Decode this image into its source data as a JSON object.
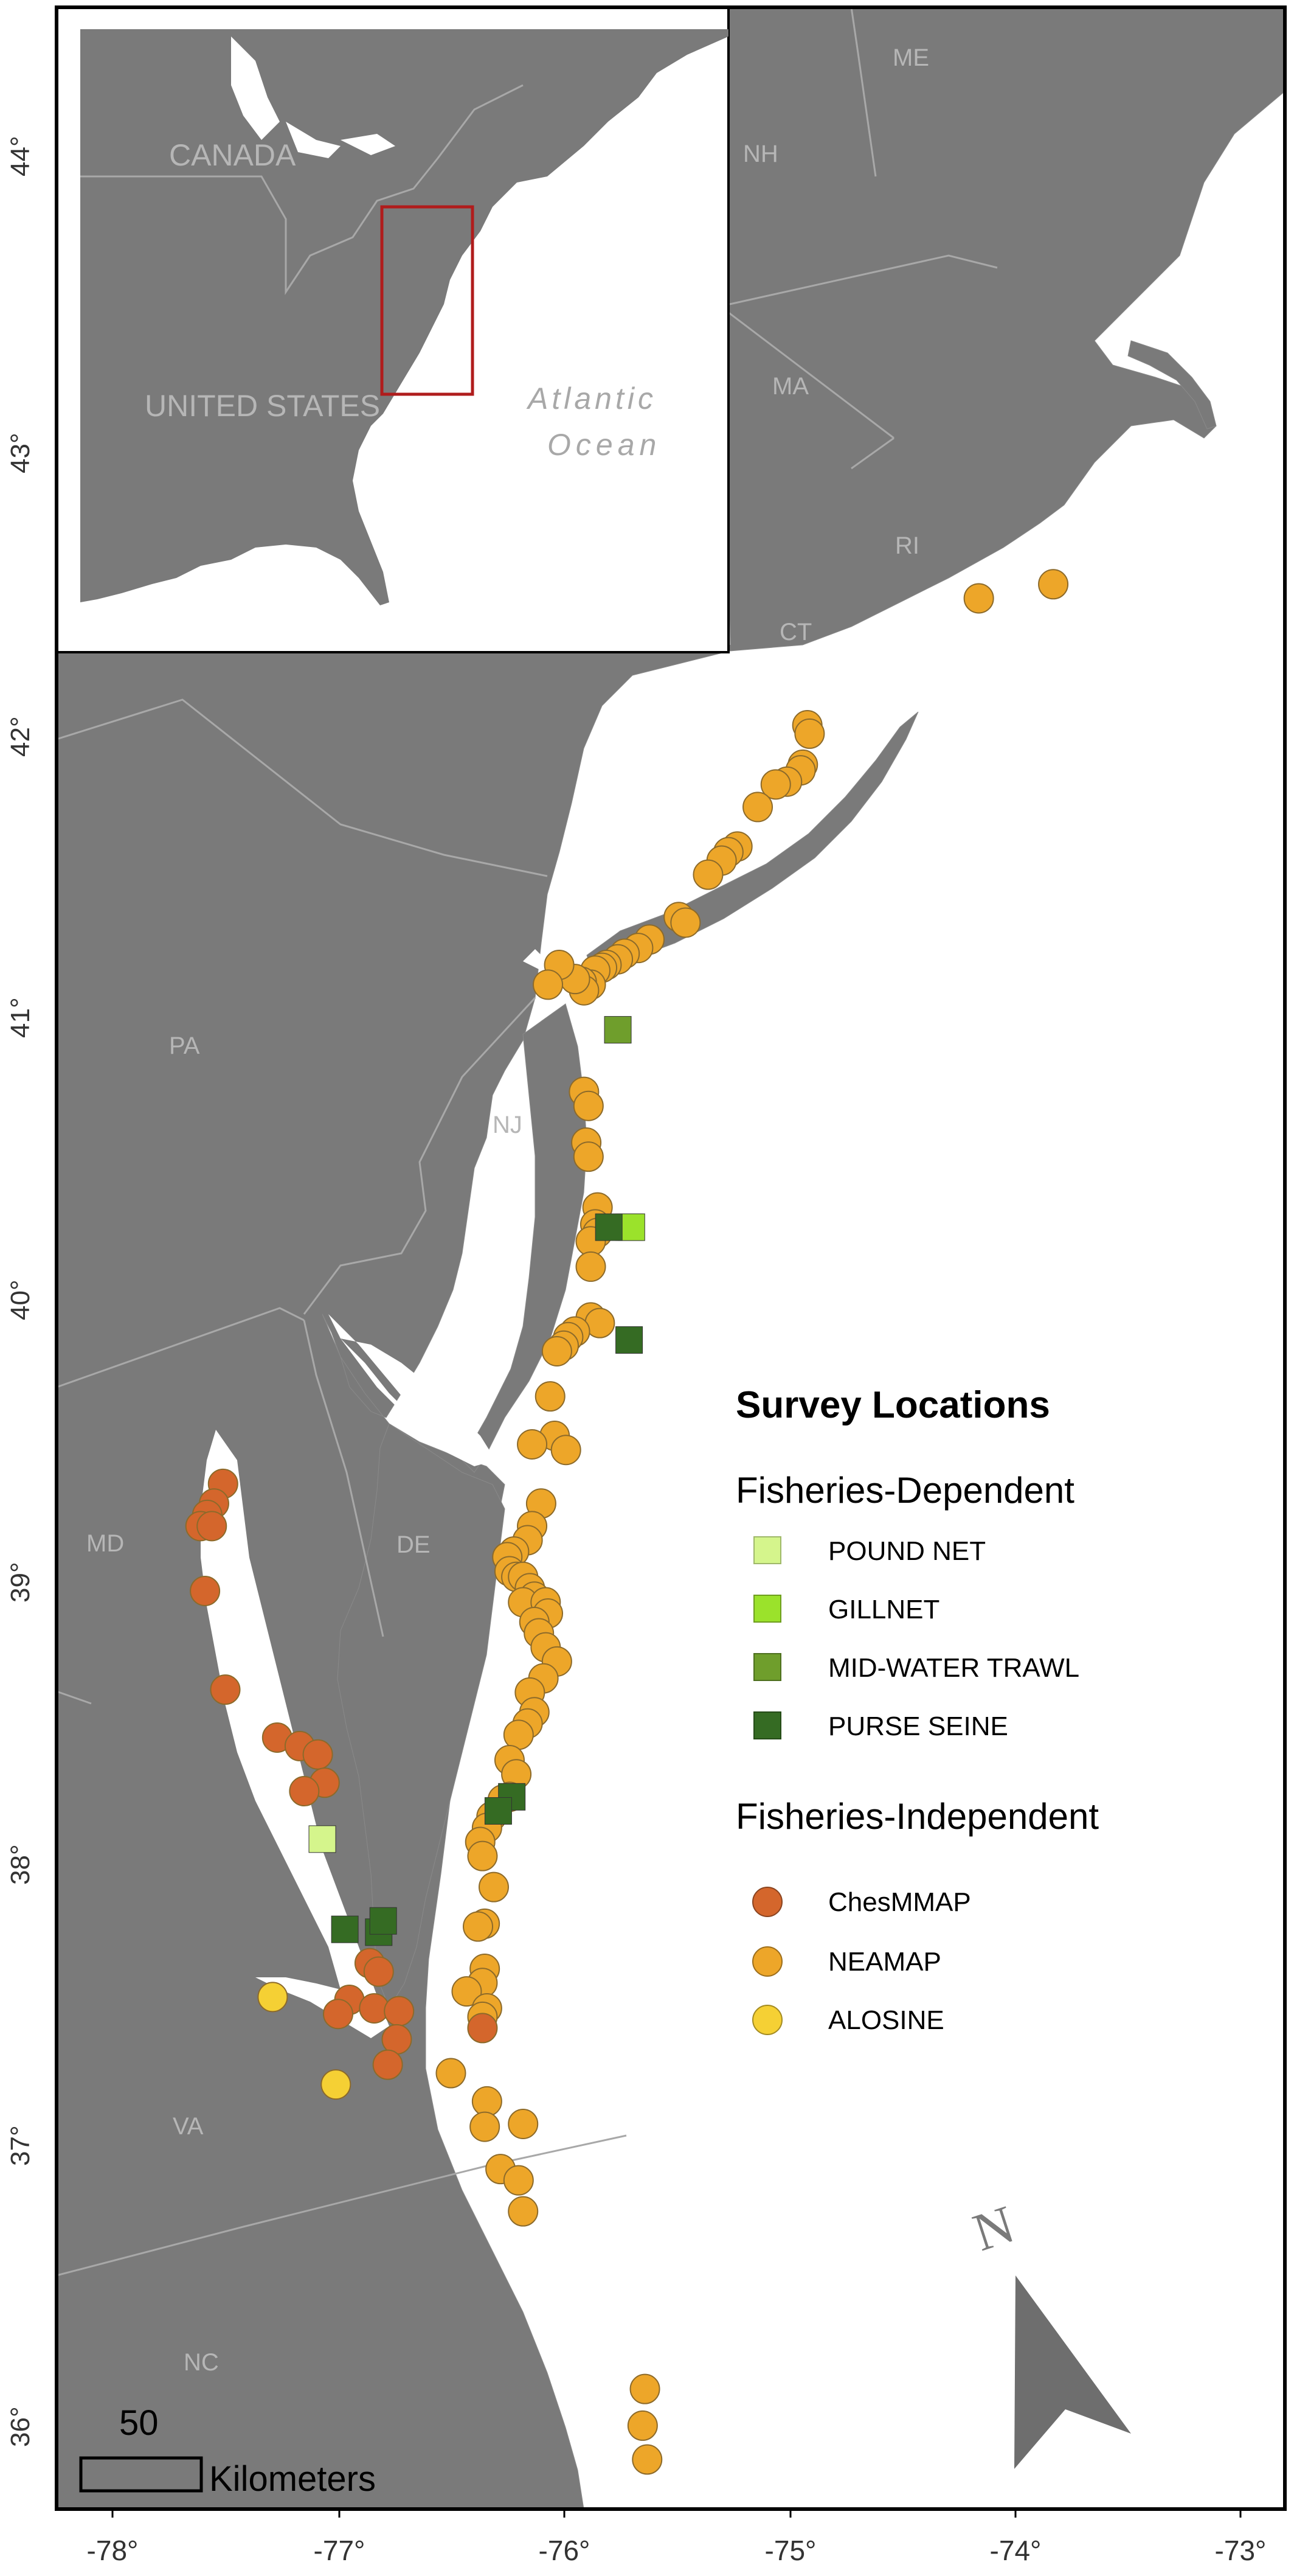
{
  "map": {
    "states": [
      {
        "label": "ME"
      },
      {
        "label": "NH"
      },
      {
        "label": "MA"
      },
      {
        "label": "RI"
      },
      {
        "label": "CT"
      },
      {
        "label": "PA"
      },
      {
        "label": "NJ"
      },
      {
        "label": "MD"
      },
      {
        "label": "DE"
      },
      {
        "label": "VA"
      },
      {
        "label": "NC"
      }
    ],
    "lat_ticks": [
      "44°",
      "43°",
      "42°",
      "41°",
      "40°",
      "39°",
      "38°",
      "37°",
      "36°"
    ],
    "lon_ticks": [
      "-78°",
      "-77°",
      "-76°",
      "-75°",
      "-74°",
      "-73°"
    ],
    "colors": {
      "land": "#7a7a7a",
      "water": "#ffffff",
      "state_border": "#a8a8a8",
      "frame": "#000000",
      "inset_box": "#b01c1c"
    }
  },
  "inset": {
    "country_labels": [
      "CANADA",
      "UNITED STATES"
    ],
    "ocean_label_line1": "Atlantic",
    "ocean_label_line2": "Ocean"
  },
  "legend": {
    "title": "Survey Locations",
    "dependent_heading": "Fisheries-Dependent",
    "independent_heading": "Fisheries-Independent",
    "dependent": [
      {
        "label": "POUND NET",
        "color": "#d5f58c"
      },
      {
        "label": "GILLNET",
        "color": "#9be22b"
      },
      {
        "label": "MID-WATER TRAWL",
        "color": "#6f9e2c"
      },
      {
        "label": "PURSE SEINE",
        "color": "#356b23"
      }
    ],
    "independent": [
      {
        "label": "ChesMMAP",
        "color": "#d4662c"
      },
      {
        "label": "NEAMAP",
        "color": "#eda629"
      },
      {
        "label": "ALOSINE",
        "color": "#f5d034"
      }
    ]
  },
  "scale": {
    "value": "50",
    "unit": "Kilometers"
  },
  "north": {
    "label": "N"
  },
  "surveys": {
    "pound_net": [
      [
        -77.07,
        38.16
      ],
      [
        -75.71,
        40.33
      ]
    ],
    "gillnet": [
      [
        -75.7,
        40.33
      ]
    ],
    "midwater": [
      [
        -75.76,
        41.03
      ]
    ],
    "purse_seine": [
      [
        -76.23,
        38.31
      ],
      [
        -76.29,
        38.26
      ],
      [
        -76.97,
        37.84
      ],
      [
        -76.82,
        37.83
      ],
      [
        -76.8,
        37.87
      ],
      [
        -75.71,
        39.93
      ],
      [
        -75.8,
        40.33
      ]
    ],
    "chesmmap": [
      [
        -77.51,
        39.42
      ],
      [
        -77.55,
        39.35
      ],
      [
        -77.58,
        39.31
      ],
      [
        -77.61,
        39.27
      ],
      [
        -77.56,
        39.27
      ],
      [
        -77.59,
        39.04
      ],
      [
        -77.5,
        38.69
      ],
      [
        -77.27,
        38.52
      ],
      [
        -77.17,
        38.49
      ],
      [
        -77.09,
        38.46
      ],
      [
        -77.06,
        38.36
      ],
      [
        -77.15,
        38.33
      ],
      [
        -76.86,
        37.72
      ],
      [
        -76.82,
        37.69
      ],
      [
        -76.95,
        37.59
      ],
      [
        -77.0,
        37.54
      ],
      [
        -76.84,
        37.56
      ],
      [
        -76.73,
        37.55
      ],
      [
        -76.74,
        37.45
      ],
      [
        -76.78,
        37.36
      ],
      [
        -76.36,
        37.49
      ]
    ],
    "neamap": [
      [
        -74.16,
        42.56
      ],
      [
        -73.83,
        42.61
      ],
      [
        -74.92,
        42.11
      ],
      [
        -74.91,
        42.08
      ],
      [
        -74.94,
        41.97
      ],
      [
        -74.95,
        41.95
      ],
      [
        -75.01,
        41.91
      ],
      [
        -75.06,
        41.9
      ],
      [
        -75.14,
        41.82
      ],
      [
        -75.23,
        41.68
      ],
      [
        -75.27,
        41.66
      ],
      [
        -75.3,
        41.63
      ],
      [
        -75.36,
        41.58
      ],
      [
        -75.49,
        41.43
      ],
      [
        -75.46,
        41.41
      ],
      [
        -75.62,
        41.35
      ],
      [
        -75.67,
        41.32
      ],
      [
        -75.73,
        41.3
      ],
      [
        -75.76,
        41.28
      ],
      [
        -75.81,
        41.26
      ],
      [
        -75.83,
        41.25
      ],
      [
        -75.86,
        41.24
      ],
      [
        -75.88,
        41.19
      ],
      [
        -75.92,
        41.2
      ],
      [
        -75.91,
        41.17
      ],
      [
        -75.95,
        41.21
      ],
      [
        -76.02,
        41.26
      ],
      [
        -76.07,
        41.19
      ],
      [
        -75.91,
        40.81
      ],
      [
        -75.89,
        40.76
      ],
      [
        -75.9,
        40.63
      ],
      [
        -75.89,
        40.58
      ],
      [
        -75.85,
        40.4
      ],
      [
        -75.86,
        40.34
      ],
      [
        -75.85,
        40.31
      ],
      [
        -75.88,
        40.28
      ],
      [
        -75.88,
        40.19
      ],
      [
        -75.88,
        40.01
      ],
      [
        -75.84,
        39.99
      ],
      [
        -75.95,
        39.96
      ],
      [
        -75.98,
        39.94
      ],
      [
        -76.0,
        39.91
      ],
      [
        -76.03,
        39.89
      ],
      [
        -76.06,
        39.73
      ],
      [
        -76.04,
        39.59
      ],
      [
        -76.14,
        39.56
      ],
      [
        -75.99,
        39.54
      ],
      [
        -76.1,
        39.35
      ],
      [
        -76.14,
        39.27
      ],
      [
        -76.16,
        39.22
      ],
      [
        -76.22,
        39.18
      ],
      [
        -76.25,
        39.16
      ],
      [
        -76.24,
        39.11
      ],
      [
        -76.21,
        39.09
      ],
      [
        -76.18,
        39.09
      ],
      [
        -76.15,
        39.05
      ],
      [
        -76.13,
        39.02
      ],
      [
        -76.18,
        39.0
      ],
      [
        -76.08,
        39.0
      ],
      [
        -76.07,
        38.96
      ],
      [
        -76.13,
        38.93
      ],
      [
        -76.11,
        38.89
      ],
      [
        -76.08,
        38.84
      ],
      [
        -76.03,
        38.79
      ],
      [
        -76.09,
        38.73
      ],
      [
        -76.15,
        38.68
      ],
      [
        -76.13,
        38.61
      ],
      [
        -76.16,
        38.57
      ],
      [
        -76.2,
        38.53
      ],
      [
        -76.24,
        38.44
      ],
      [
        -76.21,
        38.39
      ],
      [
        -76.24,
        38.31
      ],
      [
        -76.27,
        38.3
      ],
      [
        -76.32,
        38.24
      ],
      [
        -76.34,
        38.2
      ],
      [
        -76.37,
        38.15
      ],
      [
        -76.36,
        38.1
      ],
      [
        -76.31,
        37.99
      ],
      [
        -76.35,
        37.86
      ],
      [
        -76.38,
        37.85
      ],
      [
        -76.35,
        37.7
      ],
      [
        -76.36,
        37.65
      ],
      [
        -76.43,
        37.62
      ],
      [
        -76.34,
        37.56
      ],
      [
        -76.36,
        37.53
      ],
      [
        -76.5,
        37.33
      ],
      [
        -76.34,
        37.23
      ],
      [
        -76.35,
        37.14
      ],
      [
        -76.18,
        37.15
      ],
      [
        -76.28,
        36.99
      ],
      [
        -76.2,
        36.95
      ],
      [
        -76.18,
        36.84
      ],
      [
        -75.64,
        36.21
      ],
      [
        -75.65,
        36.08
      ],
      [
        -75.63,
        35.96
      ]
    ],
    "alosine": [
      [
        -77.29,
        37.6
      ],
      [
        -77.01,
        37.29
      ]
    ]
  }
}
